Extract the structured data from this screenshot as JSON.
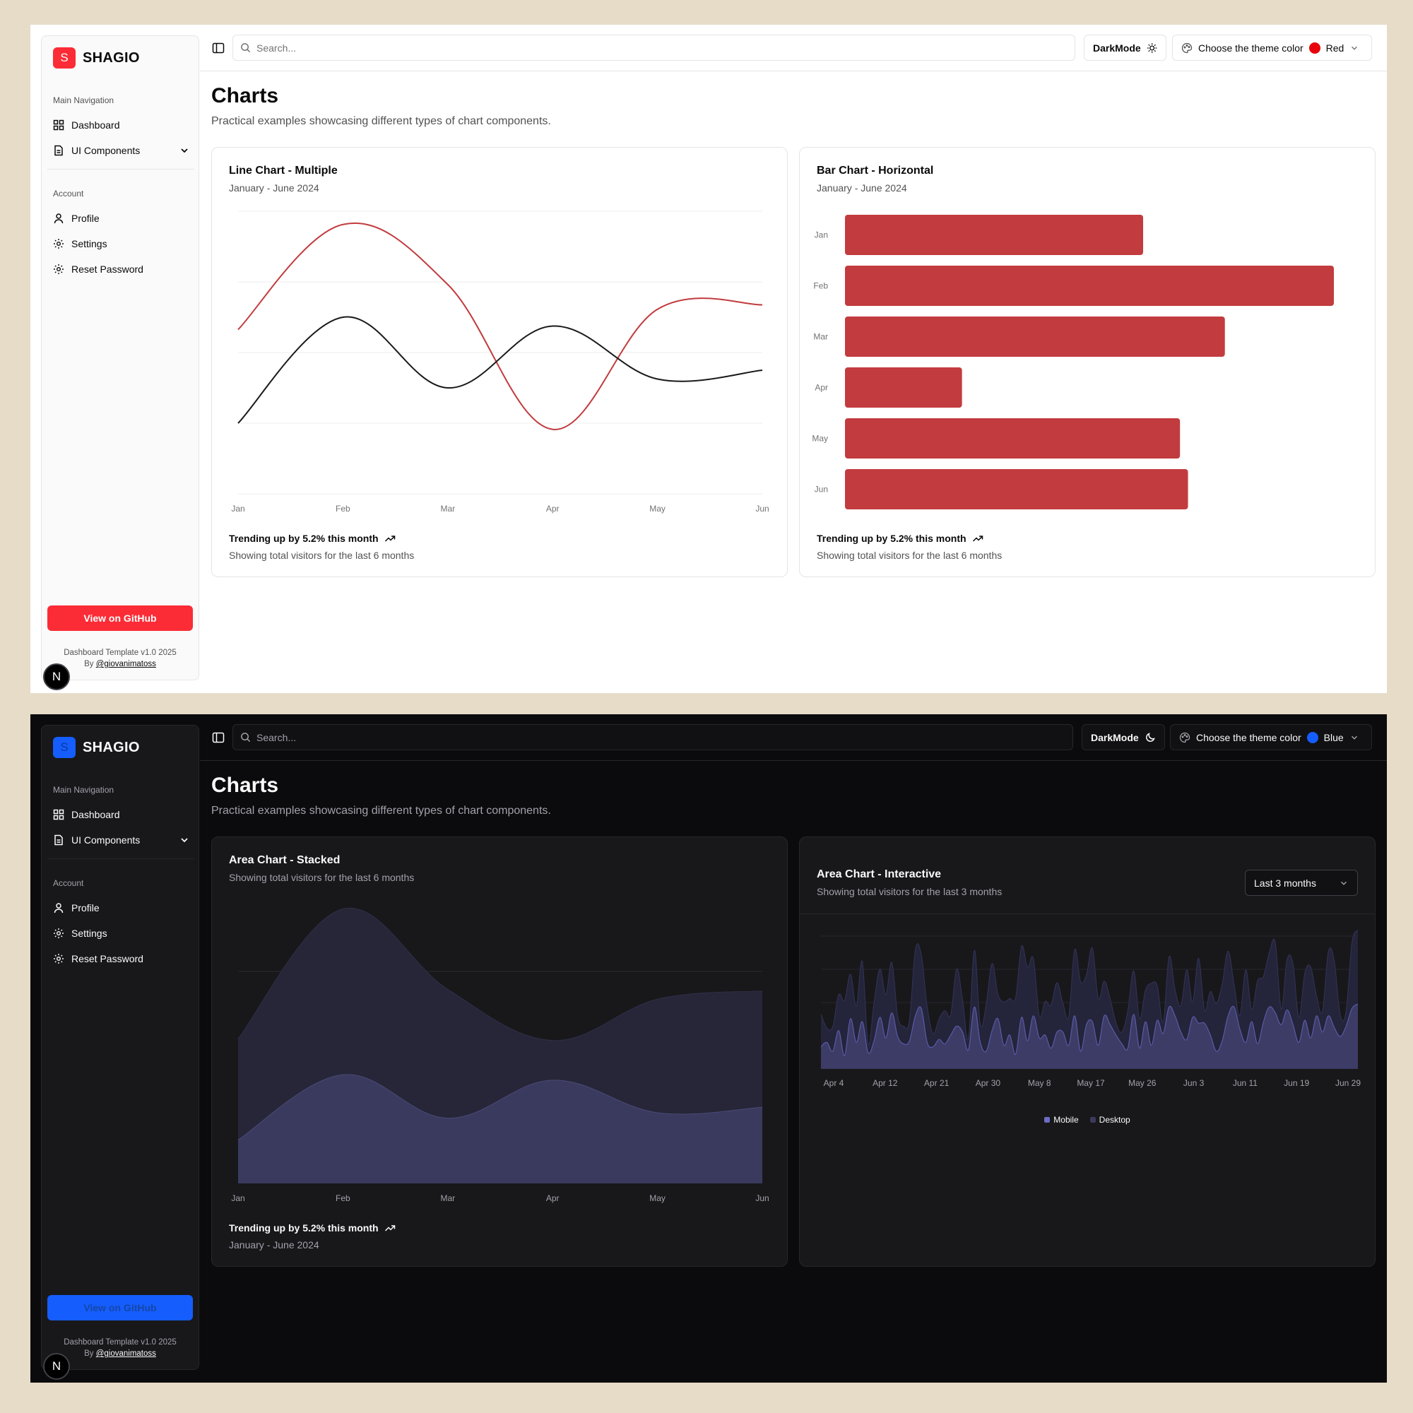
{
  "brand": {
    "name": "SHAGIO",
    "letter": "S"
  },
  "sidebar": {
    "main_label": "Main Navigation",
    "main_items": [
      {
        "label": "Dashboard",
        "icon": "grid-icon"
      },
      {
        "label": "UI Components",
        "icon": "file-icon"
      }
    ],
    "account_label": "Account",
    "account_items": [
      {
        "label": "Profile",
        "icon": "user-icon"
      },
      {
        "label": "Settings",
        "icon": "gear-icon"
      },
      {
        "label": "Reset Password",
        "icon": "gear-icon"
      }
    ],
    "github_label": "View on GitHub",
    "footer_line1": "Dashboard Template v1.0 2025",
    "footer_by": "By",
    "footer_author": "@giovanimatoss",
    "badge": "N"
  },
  "topbar": {
    "search_placeholder": "Search...",
    "darkmode_label": "DarkMode",
    "theme_label": "Choose the theme color"
  },
  "page": {
    "title": "Charts",
    "subtitle": "Practical examples showcasing different types of chart components."
  },
  "light": {
    "theme_value": "Red",
    "accent": "#fb2c36",
    "chart_color": "#c23b3e",
    "line_card": {
      "title": "Line Chart - Multiple",
      "desc": "January - June 2024",
      "foot1": "Trending up by 5.2% this month",
      "foot2": "Showing total visitors for the last 6 months"
    },
    "bar_card": {
      "title": "Bar Chart - Horizontal",
      "desc": "January - June 2024",
      "foot1": "Trending up by 5.2% this month",
      "foot2": "Showing total visitors for the last 6 months"
    }
  },
  "dark": {
    "theme_value": "Blue",
    "accent": "#155dfc",
    "area_card": {
      "title": "Area Chart - Stacked",
      "desc": "Showing total visitors for the last 6 months",
      "foot1": "Trending up by 5.2% this month",
      "foot2": "January - June 2024"
    },
    "interactive_card": {
      "title": "Area Chart - Interactive",
      "desc": "Showing total visitors for the last 3 months",
      "range": "Last 3 months",
      "legend": [
        "Mobile",
        "Desktop"
      ]
    }
  },
  "chart_data": [
    {
      "type": "line",
      "title": "Line Chart - Multiple",
      "categories": [
        "Jan",
        "Feb",
        "Mar",
        "Apr",
        "May",
        "Jun"
      ],
      "series": [
        {
          "values": [
            186,
            305,
            237,
            73,
            209,
            214
          ]
        },
        {
          "values": [
            80,
            200,
            120,
            190,
            130,
            140
          ]
        }
      ],
      "ylim": [
        0,
        320
      ],
      "grid": true
    },
    {
      "type": "bar",
      "title": "Bar Chart - Horizontal",
      "orientation": "horizontal",
      "categories": [
        "Jan",
        "Feb",
        "Mar",
        "Apr",
        "May",
        "Jun"
      ],
      "values": [
        186,
        305,
        237,
        73,
        209,
        214
      ],
      "xlim": [
        0,
        305
      ]
    },
    {
      "type": "area",
      "title": "Area Chart - Stacked",
      "stacked": true,
      "categories": [
        "Jan",
        "Feb",
        "Mar",
        "Apr",
        "May",
        "Jun"
      ],
      "series": [
        {
          "values": [
            80,
            200,
            120,
            190,
            130,
            140
          ]
        },
        {
          "values": [
            186,
            305,
            237,
            73,
            209,
            214
          ]
        }
      ],
      "ylim": [
        0,
        520
      ],
      "grid": true
    },
    {
      "type": "area",
      "title": "Area Chart - Interactive",
      "x_ticks": [
        "Apr 4",
        "Apr 12",
        "Apr 21",
        "Apr 30",
        "May 8",
        "May 17",
        "May 26",
        "Jun 3",
        "Jun 11",
        "Jun 19",
        "Jun 29"
      ],
      "legend": [
        "Mobile",
        "Desktop"
      ],
      "series": [
        {
          "name": "Mobile",
          "values": [
            150,
            180,
            120,
            260,
            90,
            340,
            180,
            320,
            110,
            190,
            350,
            210,
            380,
            220,
            170,
            190,
            360,
            410,
            180,
            150,
            200,
            170,
            230,
            290,
            250,
            130,
            420,
            180,
            120,
            260,
            340,
            160,
            230,
            100,
            350,
            190,
            360,
            210,
            230,
            140,
            250,
            250,
            160,
            360,
            120,
            300,
            320,
            160,
            360,
            300,
            230,
            170,
            140,
            370,
            140,
            320,
            160,
            330,
            240,
            420,
            360,
            250,
            200,
            350,
            310,
            310,
            230,
            120,
            190,
            360,
            420,
            270,
            180,
            320,
            170,
            320,
            420,
            380,
            300,
            400,
            300,
            180,
            330,
            210,
            360,
            250,
            360,
            280,
            220,
            290,
            410,
            440
          ]
        },
        {
          "name": "Desktop",
          "values": [
            220,
            97,
            167,
            242,
            373,
            301,
            245,
            409,
            59,
            261,
            327,
            292,
            342,
            137,
            120,
            138,
            446,
            364,
            243,
            89,
            137,
            224,
            138,
            387,
            215,
            75,
            383,
            122,
            315,
            454,
            165,
            293,
            247,
            385,
            481,
            498,
            388,
            149,
            227,
            293,
            335,
            197,
            197,
            448,
            473,
            338,
            499,
            315,
            235,
            177,
            82,
            81,
            252,
            294,
            201,
            213,
            420,
            233,
            78,
            340,
            178,
            178,
            470,
            103,
            439,
            88,
            294,
            323,
            385,
            438,
            155,
            92,
            492,
            81,
            426,
            307,
            371,
            475,
            107,
            341,
            408,
            169,
            317,
            480,
            132,
            141,
            434,
            448,
            149,
            103,
            446,
            500
          ]
        }
      ],
      "grid": true
    }
  ]
}
